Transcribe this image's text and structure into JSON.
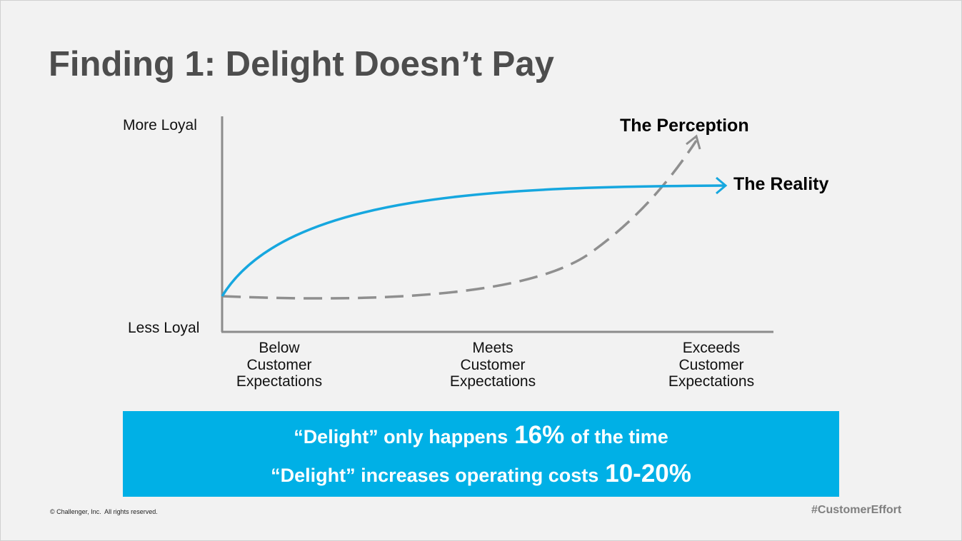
{
  "title": "Finding 1: Delight Doesn’t Pay",
  "y_axis": {
    "top": "More Loyal",
    "bottom": "Less Loyal"
  },
  "x_axis": [
    [
      "Below",
      "Customer",
      "Expectations"
    ],
    [
      "Meets",
      "Customer",
      "Expectations"
    ],
    [
      "Exceeds",
      "Customer",
      "Expectations"
    ]
  ],
  "curves": {
    "perception": "The Perception",
    "reality": "The Reality"
  },
  "banner": [
    [
      "“Delight” only happens",
      "16%",
      "of the time"
    ],
    [
      "“Delight” increases operating costs",
      "10-20%"
    ]
  ],
  "footer": {
    "copyright": "© Challenger, Inc.  All rights reserved.",
    "hashtag": "#CustomerEffort"
  }
}
